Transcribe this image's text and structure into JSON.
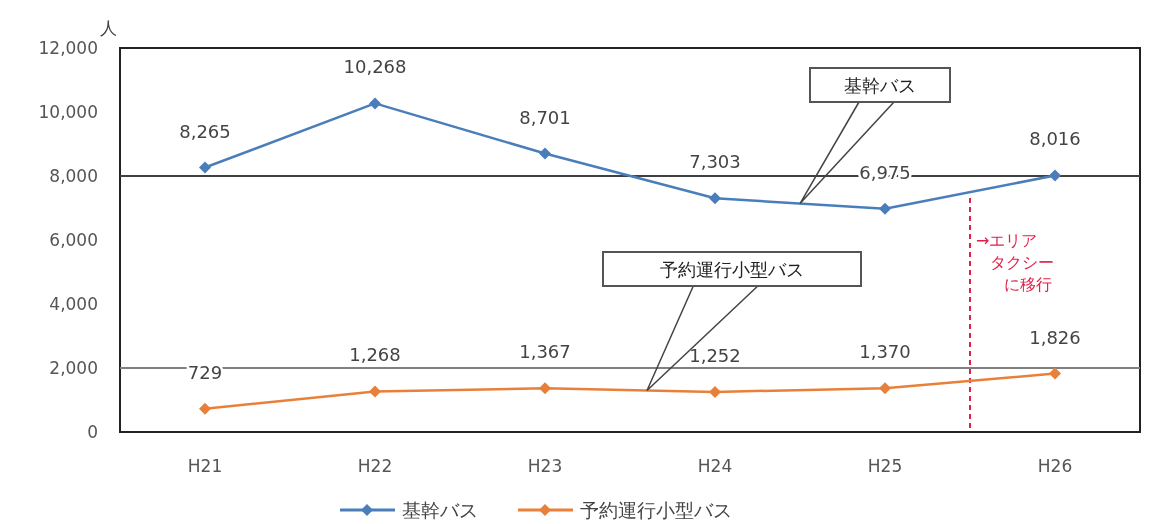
{
  "chart_data": {
    "type": "line",
    "ylabel": "人",
    "categories": [
      "H21",
      "H22",
      "H23",
      "H24",
      "H25",
      "H26"
    ],
    "series": [
      {
        "name": "基幹バス",
        "color": "#4a7ebb",
        "values": [
          8265,
          10268,
          8701,
          7303,
          6975,
          8016
        ]
      },
      {
        "name": "予約運行小型バス",
        "color": "#e8803a",
        "values": [
          729,
          1268,
          1367,
          1252,
          1370,
          1826
        ]
      }
    ],
    "ylim": [
      0,
      12000
    ],
    "yticks": [
      {
        "value": 0,
        "label": "0"
      },
      {
        "value": 2000,
        "label": "2,000"
      },
      {
        "value": 4000,
        "label": "4,000"
      },
      {
        "value": 6000,
        "label": "6,000"
      },
      {
        "value": 8000,
        "label": "8,000"
      },
      {
        "value": 10000,
        "label": "10,000"
      },
      {
        "value": 12000,
        "label": "12,000"
      }
    ],
    "value_labels": [
      [
        "8,265",
        "10,268",
        "8,701",
        "7,303",
        "6,975",
        "8,016"
      ],
      [
        "729",
        "1,268",
        "1,367",
        "1,252",
        "1,370",
        "1,826"
      ]
    ],
    "ref_lines": [
      {
        "axis": "y",
        "value": 2000,
        "color": "#808080"
      },
      {
        "axis": "y",
        "value": 8000,
        "color": "#404040"
      }
    ],
    "annotations": [
      "基幹バス",
      "予約運行小型バス",
      "→エリアタクシーに移行"
    ],
    "marker": "diamond",
    "line_style": "solid",
    "legend": "bottom",
    "grid": false
  }
}
